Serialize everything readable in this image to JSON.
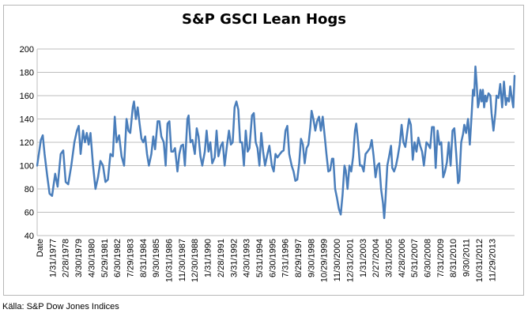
{
  "chart_data": {
    "type": "line",
    "title": "S&P GSCI Lean Hogs",
    "source": "Källa: S&P Dow Jones Indices",
    "x_axis_label": "Date",
    "xlabel": "",
    "ylabel": "",
    "ylim": [
      40,
      200
    ],
    "yticks": [
      40,
      60,
      80,
      100,
      120,
      140,
      160,
      180,
      200
    ],
    "grid": true,
    "legend": "none",
    "line_color": "#4a7ebb",
    "x_tick_labels": [
      "1/31/1977",
      "2/28/1978",
      "3/30/1979",
      "4/30/1980",
      "5/29/1981",
      "6/30/1982",
      "7/29/1983",
      "8/31/1984",
      "9/30/1985",
      "10/31/1986",
      "11/30/1987",
      "12/30/1988",
      "1/31/1990",
      "2/28/1991",
      "3/31/1992",
      "4/30/1993",
      "5/31/1994",
      "6/30/1995",
      "7/31/1996",
      "8/29/1997",
      "9/30/1998",
      "10/29/1999",
      "11/30/2000",
      "12/31/2001",
      "1/31/2003",
      "2/27/2004",
      "3/31/2005",
      "4/28/2006",
      "5/31/2007",
      "6/30/2008",
      "7/31/2009",
      "8/31/2010",
      "9/30/2011",
      "10/31/2012",
      "11/29/2013"
    ],
    "series": [
      {
        "values": [
          [
            1976.0,
            100
          ],
          [
            1976.3,
            122
          ],
          [
            1976.45,
            126
          ],
          [
            1976.6,
            110
          ],
          [
            1976.8,
            92
          ],
          [
            1977.0,
            76
          ],
          [
            1977.2,
            74
          ],
          [
            1977.45,
            93
          ],
          [
            1977.65,
            82
          ],
          [
            1977.9,
            110
          ],
          [
            1978.1,
            113
          ],
          [
            1978.3,
            86
          ],
          [
            1978.5,
            84
          ],
          [
            1978.75,
            100
          ],
          [
            1979.0,
            120
          ],
          [
            1979.2,
            130
          ],
          [
            1979.35,
            134
          ],
          [
            1979.5,
            110
          ],
          [
            1979.7,
            130
          ],
          [
            1979.85,
            120
          ],
          [
            1980.0,
            128
          ],
          [
            1980.15,
            118
          ],
          [
            1980.3,
            128
          ],
          [
            1980.5,
            100
          ],
          [
            1980.7,
            80
          ],
          [
            1980.9,
            90
          ],
          [
            1981.1,
            104
          ],
          [
            1981.3,
            100
          ],
          [
            1981.5,
            86
          ],
          [
            1981.7,
            88
          ],
          [
            1981.9,
            110
          ],
          [
            1982.1,
            108
          ],
          [
            1982.25,
            142
          ],
          [
            1982.4,
            120
          ],
          [
            1982.6,
            126
          ],
          [
            1982.8,
            108
          ],
          [
            1983.0,
            100
          ],
          [
            1983.2,
            140
          ],
          [
            1983.35,
            130
          ],
          [
            1983.5,
            128
          ],
          [
            1983.7,
            150
          ],
          [
            1983.8,
            155
          ],
          [
            1983.95,
            140
          ],
          [
            1984.1,
            150
          ],
          [
            1984.25,
            136
          ],
          [
            1984.4,
            123
          ],
          [
            1984.55,
            120
          ],
          [
            1984.7,
            125
          ],
          [
            1984.85,
            110
          ],
          [
            1985.0,
            100
          ],
          [
            1985.2,
            110
          ],
          [
            1985.35,
            125
          ],
          [
            1985.5,
            114
          ],
          [
            1985.7,
            138
          ],
          [
            1985.85,
            138
          ],
          [
            1986.0,
            125
          ],
          [
            1986.2,
            120
          ],
          [
            1986.35,
            100
          ],
          [
            1986.5,
            136
          ],
          [
            1986.65,
            138
          ],
          [
            1986.8,
            112
          ],
          [
            1986.95,
            112
          ],
          [
            1987.1,
            115
          ],
          [
            1987.3,
            95
          ],
          [
            1987.45,
            110
          ],
          [
            1987.6,
            117
          ],
          [
            1987.75,
            118
          ],
          [
            1987.9,
            100
          ],
          [
            1988.1,
            140
          ],
          [
            1988.2,
            143
          ],
          [
            1988.35,
            120
          ],
          [
            1988.5,
            122
          ],
          [
            1988.7,
            110
          ],
          [
            1988.85,
            132
          ],
          [
            1989.0,
            125
          ],
          [
            1989.15,
            108
          ],
          [
            1989.3,
            100
          ],
          [
            1989.5,
            112
          ],
          [
            1989.65,
            130
          ],
          [
            1989.8,
            112
          ],
          [
            1989.95,
            120
          ],
          [
            1990.1,
            102
          ],
          [
            1990.3,
            107
          ],
          [
            1990.45,
            130
          ],
          [
            1990.6,
            108
          ],
          [
            1990.8,
            117
          ],
          [
            1990.95,
            120
          ],
          [
            1991.1,
            100
          ],
          [
            1991.3,
            118
          ],
          [
            1991.45,
            130
          ],
          [
            1991.6,
            118
          ],
          [
            1991.75,
            120
          ],
          [
            1991.9,
            150
          ],
          [
            1992.05,
            155
          ],
          [
            1992.2,
            148
          ],
          [
            1992.35,
            120
          ],
          [
            1992.5,
            120
          ],
          [
            1992.65,
            100
          ],
          [
            1992.8,
            130
          ],
          [
            1992.95,
            112
          ],
          [
            1993.1,
            115
          ],
          [
            1993.3,
            143
          ],
          [
            1993.45,
            145
          ],
          [
            1993.6,
            120
          ],
          [
            1993.75,
            115
          ],
          [
            1993.9,
            100
          ],
          [
            1994.05,
            128
          ],
          [
            1994.2,
            112
          ],
          [
            1994.35,
            100
          ],
          [
            1994.55,
            110
          ],
          [
            1994.7,
            117
          ],
          [
            1994.9,
            100
          ],
          [
            1995.05,
            95
          ],
          [
            1995.2,
            110
          ],
          [
            1995.35,
            107
          ],
          [
            1995.55,
            110
          ],
          [
            1995.7,
            112
          ],
          [
            1995.85,
            113
          ],
          [
            1996.0,
            130
          ],
          [
            1996.15,
            134
          ],
          [
            1996.3,
            110
          ],
          [
            1996.5,
            100
          ],
          [
            1996.65,
            95
          ],
          [
            1996.8,
            87
          ],
          [
            1996.95,
            88
          ],
          [
            1997.1,
            102
          ],
          [
            1997.25,
            123
          ],
          [
            1997.4,
            118
          ],
          [
            1997.55,
            102
          ],
          [
            1997.7,
            115
          ],
          [
            1997.85,
            118
          ],
          [
            1998.0,
            133
          ],
          [
            1998.1,
            147
          ],
          [
            1998.25,
            140
          ],
          [
            1998.4,
            130
          ],
          [
            1998.55,
            138
          ],
          [
            1998.7,
            142
          ],
          [
            1998.85,
            130
          ],
          [
            1999.0,
            142
          ],
          [
            1999.15,
            126
          ],
          [
            1999.3,
            110
          ],
          [
            1999.45,
            95
          ],
          [
            1999.6,
            96
          ],
          [
            1999.75,
            106
          ],
          [
            1999.85,
            106
          ],
          [
            2000.0,
            80
          ],
          [
            2000.15,
            72
          ],
          [
            2000.3,
            63
          ],
          [
            2000.45,
            58
          ],
          [
            2000.6,
            75
          ],
          [
            2000.75,
            100
          ],
          [
            2000.85,
            96
          ],
          [
            2001.0,
            80
          ],
          [
            2001.15,
            100
          ],
          [
            2001.3,
            95
          ],
          [
            2001.45,
            108
          ],
          [
            2001.6,
            130
          ],
          [
            2001.7,
            136
          ],
          [
            2001.85,
            120
          ],
          [
            2002.0,
            100
          ],
          [
            2002.15,
            100
          ],
          [
            2002.3,
            95
          ],
          [
            2002.45,
            110
          ],
          [
            2002.6,
            112
          ],
          [
            2002.8,
            115
          ],
          [
            2002.95,
            122
          ],
          [
            2003.1,
            108
          ],
          [
            2003.25,
            90
          ],
          [
            2003.4,
            100
          ],
          [
            2003.55,
            102
          ],
          [
            2003.7,
            80
          ],
          [
            2003.85,
            68
          ],
          [
            2003.95,
            55
          ],
          [
            2004.05,
            70
          ],
          [
            2004.2,
            100
          ],
          [
            2004.35,
            108
          ],
          [
            2004.5,
            117
          ],
          [
            2004.6,
            98
          ],
          [
            2004.75,
            95
          ],
          [
            2004.9,
            100
          ],
          [
            2005.05,
            108
          ],
          [
            2005.2,
            118
          ],
          [
            2005.35,
            135
          ],
          [
            2005.5,
            120
          ],
          [
            2005.65,
            116
          ],
          [
            2005.8,
            128
          ],
          [
            2005.95,
            140
          ],
          [
            2006.1,
            135
          ],
          [
            2006.25,
            105
          ],
          [
            2006.4,
            120
          ],
          [
            2006.55,
            112
          ],
          [
            2006.7,
            124
          ],
          [
            2006.85,
            117
          ],
          [
            2007.0,
            112
          ],
          [
            2007.15,
            100
          ],
          [
            2007.35,
            120
          ],
          [
            2007.5,
            118
          ],
          [
            2007.65,
            115
          ],
          [
            2007.8,
            133
          ],
          [
            2007.95,
            133
          ],
          [
            2008.1,
            98
          ],
          [
            2008.25,
            130
          ],
          [
            2008.4,
            118
          ],
          [
            2008.55,
            120
          ],
          [
            2008.7,
            90
          ],
          [
            2008.85,
            95
          ],
          [
            2009.0,
            103
          ],
          [
            2009.15,
            120
          ],
          [
            2009.3,
            100
          ],
          [
            2009.45,
            130
          ],
          [
            2009.6,
            132
          ],
          [
            2009.75,
            110
          ],
          [
            2009.9,
            85
          ],
          [
            2010.0,
            87
          ],
          [
            2010.15,
            120
          ],
          [
            2010.3,
            127
          ],
          [
            2010.4,
            135
          ],
          [
            2010.55,
            128
          ],
          [
            2010.7,
            140
          ],
          [
            2010.85,
            118
          ],
          [
            2011.0,
            145
          ],
          [
            2011.1,
            165
          ],
          [
            2011.2,
            160
          ],
          [
            2011.3,
            185
          ],
          [
            2011.4,
            170
          ],
          [
            2011.5,
            150
          ],
          [
            2011.6,
            155
          ],
          [
            2011.7,
            165
          ],
          [
            2011.8,
            155
          ],
          [
            2011.9,
            165
          ],
          [
            2012.0,
            150
          ],
          [
            2012.1,
            160
          ],
          [
            2012.2,
            155
          ],
          [
            2012.35,
            162
          ],
          [
            2012.5,
            160
          ],
          [
            2012.6,
            145
          ],
          [
            2012.75,
            130
          ],
          [
            2012.9,
            145
          ],
          [
            2013.0,
            160
          ],
          [
            2013.15,
            158
          ],
          [
            2013.3,
            170
          ],
          [
            2013.45,
            150
          ],
          [
            2013.6,
            172
          ],
          [
            2013.75,
            152
          ],
          [
            2013.85,
            158
          ],
          [
            2014.0,
            155
          ],
          [
            2014.1,
            168
          ],
          [
            2014.2,
            160
          ],
          [
            2014.35,
            150
          ],
          [
            2014.45,
            177
          ]
        ]
      }
    ]
  }
}
